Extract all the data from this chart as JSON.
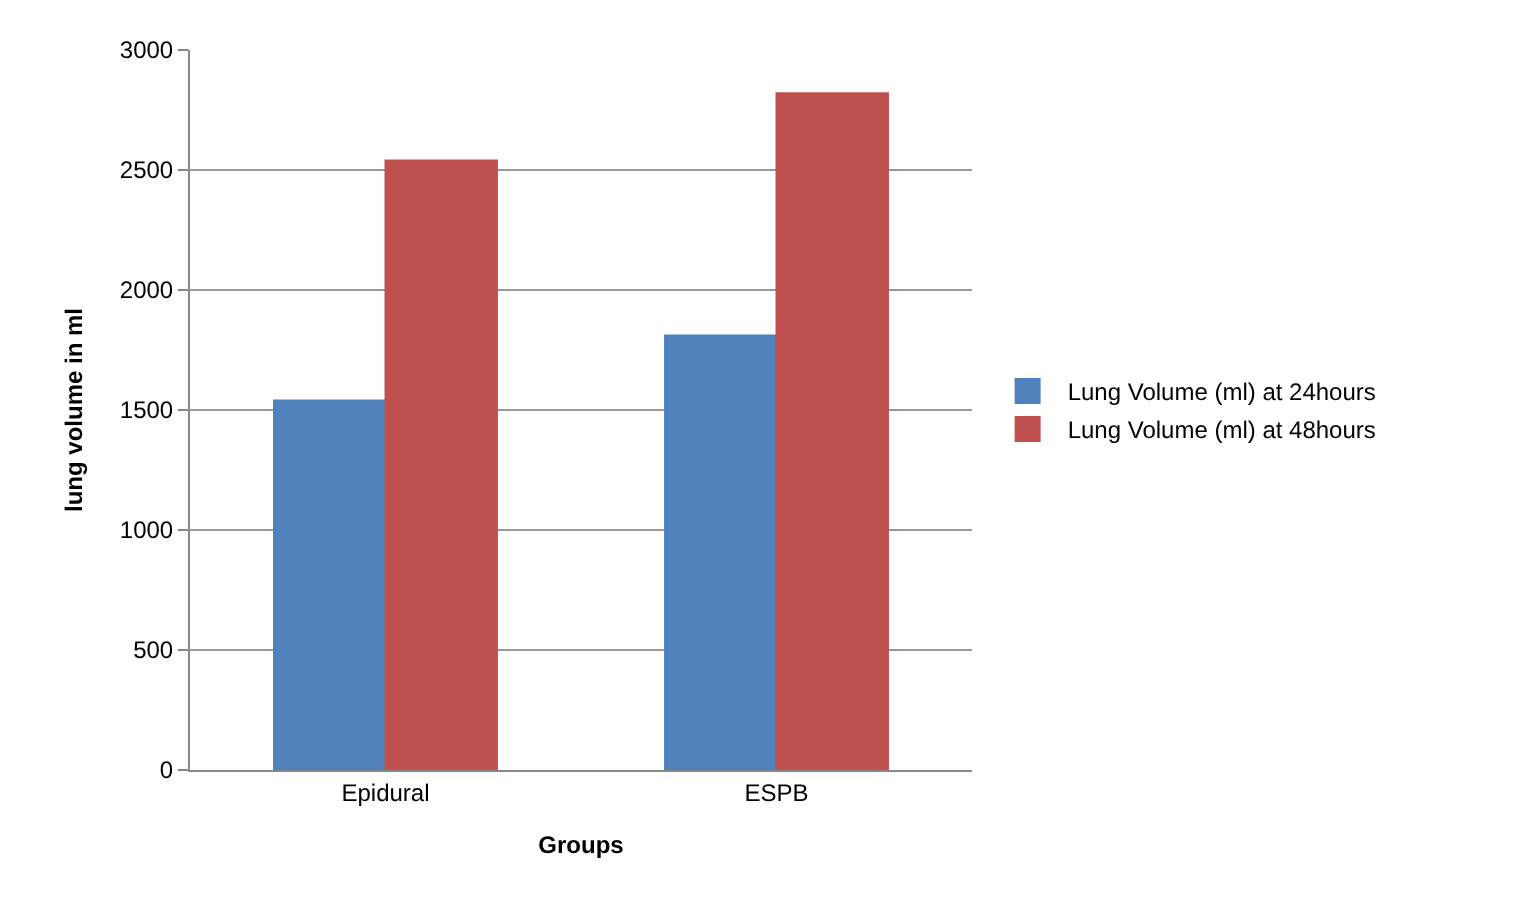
{
  "chart_data": {
    "type": "bar",
    "xlabel": "Groups",
    "ylabel": "lung volume in ml",
    "categories": [
      "Epidural",
      "ESPB"
    ],
    "series": [
      {
        "name": "Lung Volume (ml) at 24hours",
        "color": "#4f81bd",
        "values": [
          1540,
          1810
        ]
      },
      {
        "name": "Lung Volume (ml) at 48hours",
        "color": "#c0504d",
        "values": [
          2540,
          2820
        ]
      }
    ],
    "ylim": [
      0,
      3000
    ],
    "yticks": [
      0,
      500,
      1000,
      1500,
      2000,
      2500,
      3000
    ],
    "grid": "y",
    "legend": "right"
  }
}
